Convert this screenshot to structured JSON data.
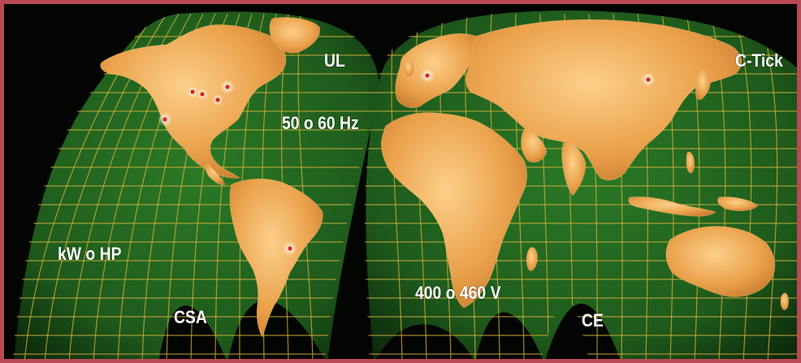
{
  "map": {
    "projection": "interrupted-goode-homolosine",
    "colors": {
      "ocean": "#1e5a1c",
      "ocean_edge": "#0c2a0b",
      "graticule": "#d8b23a",
      "land": "#e8a24a",
      "land_highlight": "#f8c46a",
      "frame": "#b84a55",
      "marker": "#d42525"
    },
    "labels": [
      {
        "id": "ul",
        "text": "UL"
      },
      {
        "id": "c-tick",
        "text": "C-Tick"
      },
      {
        "id": "hz",
        "text": "50 o 60 Hz"
      },
      {
        "id": "kw-hp",
        "text": "kW o HP"
      },
      {
        "id": "volts",
        "text": "400 o 460 V"
      },
      {
        "id": "csa",
        "text": "CSA"
      },
      {
        "id": "ce",
        "text": "CE"
      }
    ]
  }
}
